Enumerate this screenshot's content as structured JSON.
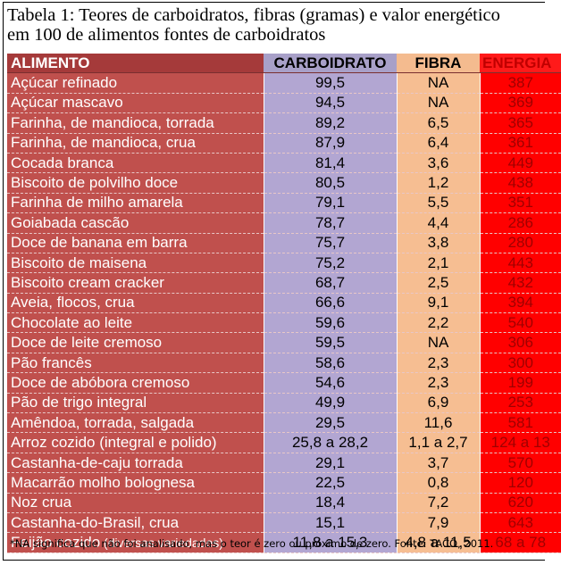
{
  "caption": {
    "line1": "Tabela 1: Teores de carboidratos, fibras (gramas) e valor energético",
    "line2": "em 100 de alimentos fontes de carboidratos"
  },
  "headers": {
    "alimento": "ALIMENTO",
    "carboidrato": "CARBOIDRATO",
    "fibra": "FIBRA",
    "energia": "ENERGIA"
  },
  "colors": {
    "alimento": "#c0504d",
    "carboidrato": "#b2a6d2",
    "fibra": "#f6be92",
    "energia": "#ff0000"
  },
  "rows": [
    {
      "name": "Açúcar refinado",
      "carb": "99,5",
      "fib": "NA",
      "energ": "387"
    },
    {
      "name": "Açúcar mascavo",
      "carb": "94,5",
      "fib": "NA",
      "energ": "369"
    },
    {
      "name": "Farinha, de mandioca, torrada",
      "carb": "89,2",
      "fib": "6,5",
      "energ": "365"
    },
    {
      "name": "Farinha, de mandioca, crua",
      "carb": "87,9",
      "fib": "6,4",
      "energ": "361"
    },
    {
      "name": "Cocada branca",
      "carb": "81,4",
      "fib": "3,6",
      "energ": "449"
    },
    {
      "name": "Biscoito de polvilho doce",
      "carb": "80,5",
      "fib": "1,2",
      "energ": "438"
    },
    {
      "name": "Farinha de milho amarela",
      "carb": "79,1",
      "fib": "5,5",
      "energ": "351"
    },
    {
      "name": "Goiabada cascão",
      "carb": "78,7",
      "fib": "4,4",
      "energ": "286"
    },
    {
      "name": "Doce de banana em barra",
      "carb": "75,7",
      "fib": "3,8",
      "energ": "280"
    },
    {
      "name": "Biscoito de maisena",
      "carb": "75,2",
      "fib": "2,1",
      "energ": "443"
    },
    {
      "name": "Biscoito cream cracker",
      "carb": "68,7",
      "fib": "2,5",
      "energ": "432"
    },
    {
      "name": "Aveia, flocos, crua",
      "carb": "66,6",
      "fib": "9,1",
      "energ": "394"
    },
    {
      "name": "Chocolate ao leite",
      "carb": "59,6",
      "fib": "2,2",
      "energ": "540"
    },
    {
      "name": "Doce de leite cremoso",
      "carb": "59,5",
      "fib": "NA",
      "energ": "306"
    },
    {
      "name": "Pão francês",
      "carb": "58,6",
      "fib": "2,3",
      "energ": "300"
    },
    {
      "name": "Doce de abóbora cremoso",
      "carb": "54,6",
      "fib": "2,3",
      "energ": "199"
    },
    {
      "name": "Pão de trigo integral",
      "carb": "49,9",
      "fib": "6,9",
      "energ": "253"
    },
    {
      "name": "Amêndoa, torrada, salgada",
      "carb": "29,5",
      "fib": "11,6",
      "energ": "581"
    },
    {
      "name": "Arroz cozido (integral e polido)",
      "carb": "25,8 a 28,2",
      "fib": "1,1 a 2,7",
      "energ": "124 a 13"
    },
    {
      "name": "Castanha-de-caju torrada",
      "carb": "29,1",
      "fib": "3,7",
      "energ": "570"
    },
    {
      "name": "Macarrão molho bolognesa",
      "carb": "22,5",
      "fib": "0,8",
      "energ": "120"
    },
    {
      "name": "Noz crua",
      "carb": "18,4",
      "fib": "7,2",
      "energ": "620"
    },
    {
      "name": "Castanha-do-Brasil, crua",
      "carb": "15,1",
      "fib": "7,9",
      "energ": "643"
    },
    {
      "name": "Feijão cozido",
      "name_suffix": " (diversas variedades)",
      "carb": "11,8 a 15,3",
      "fib": "4,8 a 11,5",
      "energ": "68 a 78"
    }
  ],
  "footnote": "*NA significa que não foi analisado, mas o teor é zero ou próximo de zero. Fonte: TACO, 2011."
}
